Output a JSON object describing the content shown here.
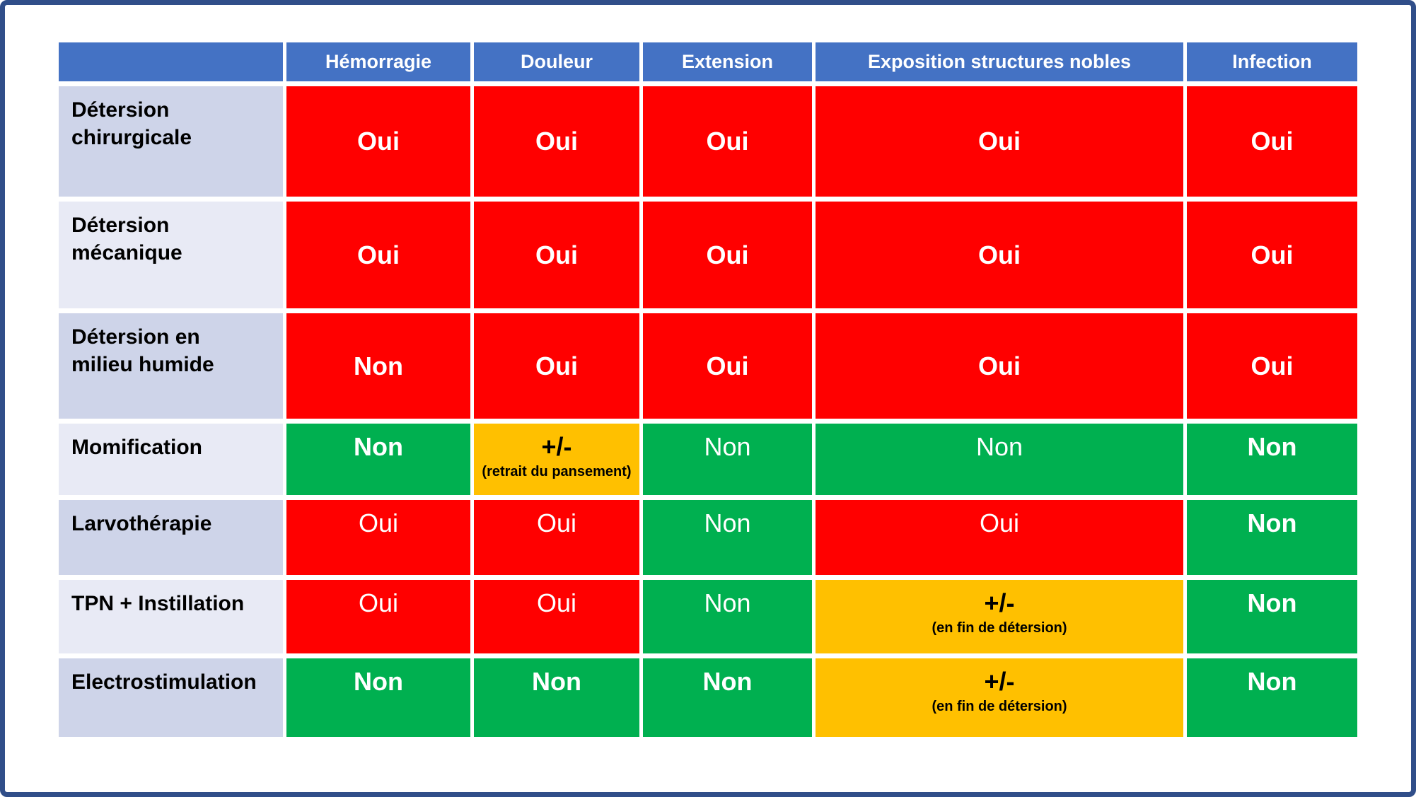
{
  "colors": {
    "frame_border": "#304E89",
    "header_blue": "#4472C4",
    "cell_red": "#FF0000",
    "cell_green": "#00B050",
    "cell_orange": "#FFC000",
    "label_band_dark": "#CED4E9",
    "label_band_light": "#E8EAF5",
    "header_text": "#FFFFFF",
    "value_text_light": "#FFFFFF",
    "value_text_dark": "#000000"
  },
  "table": {
    "header": {
      "corner": "",
      "columns": [
        "Hémorragie",
        "Douleur",
        "Extension",
        "Exposition structures nobles",
        "Infection"
      ]
    },
    "rows": [
      {
        "label": "Détersion\nchirurgicale",
        "cells": [
          {
            "text": "Oui",
            "color": "red",
            "bold": true
          },
          {
            "text": "Oui",
            "color": "red",
            "bold": true
          },
          {
            "text": "Oui",
            "color": "red",
            "bold": true
          },
          {
            "text": "Oui",
            "color": "red",
            "bold": true
          },
          {
            "text": "Oui",
            "color": "red",
            "bold": true
          }
        ]
      },
      {
        "label": "Détersion\nmécanique",
        "cells": [
          {
            "text": "Oui",
            "color": "red",
            "bold": true
          },
          {
            "text": "Oui",
            "color": "red",
            "bold": true
          },
          {
            "text": "Oui",
            "color": "red",
            "bold": true
          },
          {
            "text": "Oui",
            "color": "red",
            "bold": true
          },
          {
            "text": "Oui",
            "color": "red",
            "bold": true
          }
        ]
      },
      {
        "label": "Détersion en\nmilieu humide",
        "cells": [
          {
            "text": "Non",
            "color": "red",
            "bold": true
          },
          {
            "text": "Oui",
            "color": "red",
            "bold": true
          },
          {
            "text": "Oui",
            "color": "red",
            "bold": true
          },
          {
            "text": "Oui",
            "color": "red",
            "bold": true
          },
          {
            "text": "Oui",
            "color": "red",
            "bold": true
          }
        ]
      },
      {
        "label": "Momification",
        "cells": [
          {
            "text": "Non",
            "color": "green",
            "bold": true
          },
          {
            "text": "+/-",
            "note": "(retrait du pansement)",
            "color": "orange",
            "bold": true
          },
          {
            "text": "Non",
            "color": "green",
            "bold": false
          },
          {
            "text": "Non",
            "color": "green",
            "bold": false
          },
          {
            "text": "Non",
            "color": "green",
            "bold": true
          }
        ]
      },
      {
        "label": "Larvothérapie",
        "cells": [
          {
            "text": "Oui",
            "color": "red",
            "bold": false
          },
          {
            "text": "Oui",
            "color": "red",
            "bold": false
          },
          {
            "text": "Non",
            "color": "green",
            "bold": false
          },
          {
            "text": "Oui",
            "color": "red",
            "bold": false
          },
          {
            "text": "Non",
            "color": "green",
            "bold": true
          }
        ]
      },
      {
        "label": "TPN + Instillation",
        "cells": [
          {
            "text": "Oui",
            "color": "red",
            "bold": false
          },
          {
            "text": "Oui",
            "color": "red",
            "bold": false
          },
          {
            "text": "Non",
            "color": "green",
            "bold": false
          },
          {
            "text": "+/-",
            "note": "(en fin de détersion)",
            "color": "orange",
            "bold": true
          },
          {
            "text": "Non",
            "color": "green",
            "bold": true
          }
        ]
      },
      {
        "label": "Electrostimulation",
        "cells": [
          {
            "text": "Non",
            "color": "green",
            "bold": true
          },
          {
            "text": "Non",
            "color": "green",
            "bold": true
          },
          {
            "text": "Non",
            "color": "green",
            "bold": true
          },
          {
            "text": "+/-",
            "note": "(en fin de détersion)",
            "color": "orange",
            "bold": true
          },
          {
            "text": "Non",
            "color": "green",
            "bold": true
          }
        ]
      }
    ]
  }
}
